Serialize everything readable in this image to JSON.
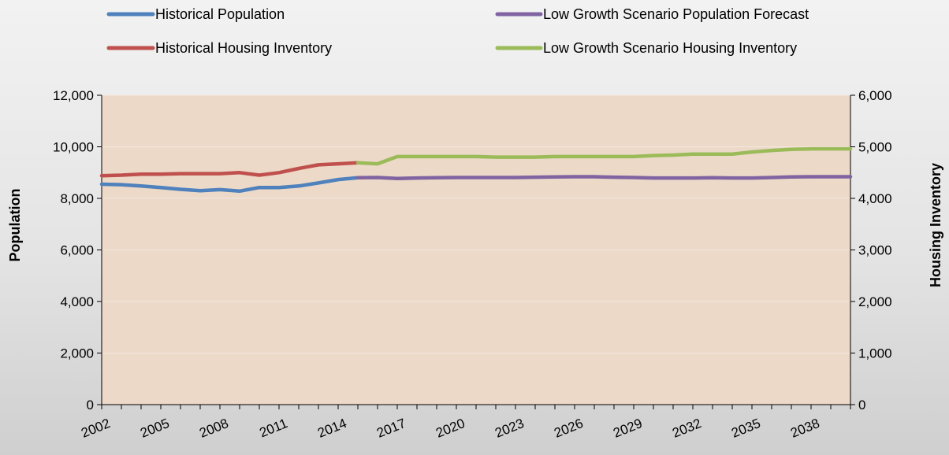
{
  "chart_data": {
    "type": "line",
    "title": "",
    "xlabel": "",
    "ylabel": "Population",
    "y2label": "Housing Inventory",
    "x_tick_labels": [
      "2002",
      "2005",
      "2008",
      "2011",
      "2014",
      "2017",
      "2020",
      "2023",
      "2026",
      "2029",
      "2032",
      "2035",
      "2038"
    ],
    "ylim": [
      0,
      12000
    ],
    "y2lim": [
      0,
      6000
    ],
    "y_ticks": [
      "0",
      "2,000",
      "4,000",
      "6,000",
      "8,000",
      "10,000",
      "12,000"
    ],
    "y2_ticks": [
      "0",
      "1,000",
      "2,000",
      "3,000",
      "4,000",
      "5,000",
      "6,000"
    ],
    "grid": true,
    "legend_position": "top",
    "plot_background": "#ecd9c8",
    "series": [
      {
        "name": "Historical Population",
        "axis": "left",
        "color": "#4f81bd",
        "x": [
          2002,
          2003,
          2004,
          2005,
          2006,
          2007,
          2008,
          2009,
          2010,
          2011,
          2012,
          2013,
          2014,
          2015
        ],
        "values": [
          8550,
          8530,
          8480,
          8420,
          8350,
          8300,
          8340,
          8280,
          8420,
          8420,
          8480,
          8600,
          8730,
          8800
        ]
      },
      {
        "name": "Low Growth Scenario Population Forecast",
        "axis": "left",
        "color": "#8064a2",
        "x": [
          2015,
          2016,
          2017,
          2018,
          2019,
          2020,
          2021,
          2022,
          2023,
          2024,
          2025,
          2026,
          2027,
          2028,
          2029,
          2030,
          2031,
          2032,
          2033,
          2034,
          2035,
          2036,
          2037,
          2038,
          2039,
          2040
        ],
        "values": [
          8800,
          8810,
          8770,
          8790,
          8800,
          8810,
          8810,
          8810,
          8810,
          8820,
          8830,
          8840,
          8840,
          8820,
          8810,
          8790,
          8790,
          8790,
          8800,
          8790,
          8790,
          8810,
          8830,
          8840,
          8840,
          8840
        ]
      },
      {
        "name": "Historical Housing Inventory",
        "axis": "right",
        "color": "#c0504d",
        "x": [
          2002,
          2003,
          2004,
          2005,
          2006,
          2007,
          2008,
          2009,
          2010,
          2011,
          2012,
          2013,
          2014,
          2015
        ],
        "values": [
          4440,
          4450,
          4470,
          4470,
          4480,
          4480,
          4480,
          4500,
          4450,
          4500,
          4580,
          4650,
          4670,
          4690
        ]
      },
      {
        "name": "Low Growth Scenario Housing Inventory",
        "axis": "right",
        "color": "#9bbb59",
        "x": [
          2015,
          2016,
          2017,
          2018,
          2019,
          2020,
          2021,
          2022,
          2023,
          2024,
          2025,
          2026,
          2027,
          2028,
          2029,
          2030,
          2031,
          2032,
          2033,
          2034,
          2035,
          2036,
          2037,
          2038,
          2039,
          2040
        ],
        "values": [
          4690,
          4670,
          4810,
          4810,
          4810,
          4810,
          4810,
          4800,
          4800,
          4800,
          4810,
          4810,
          4810,
          4810,
          4810,
          4830,
          4840,
          4860,
          4860,
          4860,
          4900,
          4930,
          4950,
          4960,
          4960,
          4960
        ]
      }
    ]
  }
}
